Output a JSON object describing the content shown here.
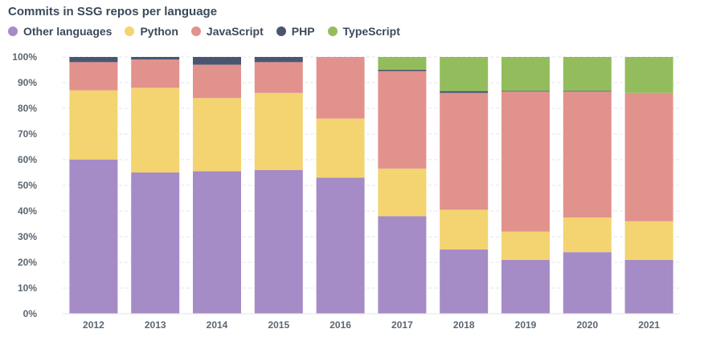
{
  "chart_data": {
    "type": "bar",
    "stacked": true,
    "normalized": true,
    "title": "Commits in SSG repos per language",
    "xlabel": "",
    "ylabel": "",
    "ylim": [
      0,
      100
    ],
    "y_ticks": [
      "0%",
      "10%",
      "20%",
      "30%",
      "40%",
      "50%",
      "60%",
      "70%",
      "80%",
      "90%",
      "100%"
    ],
    "grid": true,
    "legend_position": "top-left",
    "categories": [
      "2012",
      "2013",
      "2014",
      "2015",
      "2016",
      "2017",
      "2018",
      "2019",
      "2020",
      "2021"
    ],
    "series": [
      {
        "name": "Other languages",
        "color": "#a58cc6",
        "values": [
          60,
          55,
          55.5,
          56,
          53,
          38,
          25,
          21,
          24,
          21
        ]
      },
      {
        "name": "Python",
        "color": "#f3d470",
        "values": [
          27,
          33,
          28.5,
          30,
          23,
          18.5,
          15.5,
          11,
          13.5,
          15
        ]
      },
      {
        "name": "JavaScript",
        "color": "#e2928d",
        "values": [
          11,
          11,
          13,
          12,
          24,
          38,
          45.5,
          54.5,
          49,
          50
        ]
      },
      {
        "name": "PHP",
        "color": "#4a5671",
        "values": [
          2,
          1,
          3,
          2,
          0.3,
          0.5,
          0.7,
          0.3,
          0.3,
          0
        ]
      },
      {
        "name": "TypeScript",
        "color": "#93bd5c",
        "values": [
          0,
          0,
          0,
          0,
          0,
          5,
          13.3,
          13.2,
          13.2,
          14
        ]
      }
    ]
  }
}
